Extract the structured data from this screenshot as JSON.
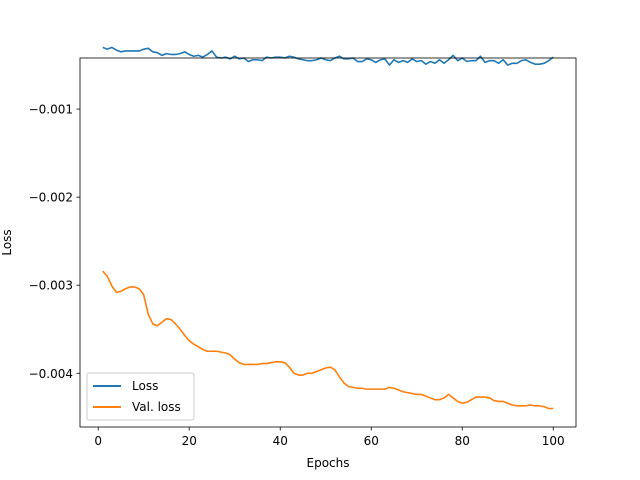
{
  "chart_data": {
    "type": "line",
    "title": "",
    "xlabel": "Epochs",
    "ylabel": "Loss",
    "xlim": [
      -4.0,
      105.0
    ],
    "ylim": [
      -0.00461,
      -0.00042
    ],
    "x_ticks": [
      0,
      20,
      40,
      60,
      80,
      100
    ],
    "x_tick_labels": [
      "0",
      "20",
      "40",
      "60",
      "80",
      "100"
    ],
    "y_ticks": [
      -0.001,
      -0.002,
      -0.003,
      -0.004
    ],
    "y_tick_labels": [
      "−0.001",
      "−0.002",
      "−0.003",
      "−0.004"
    ],
    "grid": false,
    "legend_position": "lower-left",
    "colors": {
      "Loss": "#1f77b4",
      "Val. loss": "#ff7f0e"
    },
    "x": [
      1,
      2,
      3,
      4,
      5,
      6,
      7,
      8,
      9,
      10,
      11,
      12,
      13,
      14,
      15,
      16,
      17,
      18,
      19,
      20,
      21,
      22,
      23,
      24,
      25,
      26,
      27,
      28,
      29,
      30,
      31,
      32,
      33,
      34,
      35,
      36,
      37,
      38,
      39,
      40,
      41,
      42,
      43,
      44,
      45,
      46,
      47,
      48,
      49,
      50,
      51,
      52,
      53,
      54,
      55,
      56,
      57,
      58,
      59,
      60,
      61,
      62,
      63,
      64,
      65,
      66,
      67,
      68,
      69,
      70,
      71,
      72,
      73,
      74,
      75,
      76,
      77,
      78,
      79,
      80,
      81,
      82,
      83,
      84,
      85,
      86,
      87,
      88,
      89,
      90,
      91,
      92,
      93,
      94,
      95,
      96,
      97,
      98,
      99,
      100
    ],
    "series": [
      {
        "name": "Loss",
        "values": [
          -0.0003,
          -0.00032,
          -0.0003,
          -0.00033,
          -0.00035,
          -0.00034,
          -0.00034,
          -0.00034,
          -0.00034,
          -0.00032,
          -0.00031,
          -0.00035,
          -0.00036,
          -0.00039,
          -0.00037,
          -0.00038,
          -0.00038,
          -0.00037,
          -0.00035,
          -0.00038,
          -0.0004,
          -0.00039,
          -0.00041,
          -0.00038,
          -0.00034,
          -0.00041,
          -0.00042,
          -0.00041,
          -0.00043,
          -0.0004,
          -0.00043,
          -0.00042,
          -0.00046,
          -0.00044,
          -0.00044,
          -0.00045,
          -0.00041,
          -0.00042,
          -0.00041,
          -0.00041,
          -0.00042,
          -0.0004,
          -0.00041,
          -0.00043,
          -0.00044,
          -0.00045,
          -0.00045,
          -0.00044,
          -0.00042,
          -0.00044,
          -0.00045,
          -0.00042,
          -0.0004,
          -0.00043,
          -0.00043,
          -0.00042,
          -0.00046,
          -0.00046,
          -0.00043,
          -0.00044,
          -0.00047,
          -0.00044,
          -0.00043,
          -0.0005,
          -0.00044,
          -0.00047,
          -0.00045,
          -0.00047,
          -0.00043,
          -0.00046,
          -0.00045,
          -0.00049,
          -0.00046,
          -0.00048,
          -0.00044,
          -0.00048,
          -0.00044,
          -0.00039,
          -0.00045,
          -0.00042,
          -0.00046,
          -0.00045,
          -0.00045,
          -0.0004,
          -0.00047,
          -0.00045,
          -0.00045,
          -0.00048,
          -0.00044,
          -0.0005,
          -0.00048,
          -0.00048,
          -0.00045,
          -0.00044,
          -0.00047,
          -0.00049,
          -0.00049,
          -0.00048,
          -0.00045,
          -0.00041
        ]
      },
      {
        "name": "Val. loss",
        "values": [
          -0.00284,
          -0.0029,
          -0.00301,
          -0.00308,
          -0.00307,
          -0.00304,
          -0.00302,
          -0.00302,
          -0.00304,
          -0.00311,
          -0.00333,
          -0.00344,
          -0.00346,
          -0.00342,
          -0.00338,
          -0.00339,
          -0.00344,
          -0.0035,
          -0.00357,
          -0.00363,
          -0.00367,
          -0.0037,
          -0.00373,
          -0.00375,
          -0.00375,
          -0.00375,
          -0.00376,
          -0.00377,
          -0.00379,
          -0.00384,
          -0.00388,
          -0.0039,
          -0.0039,
          -0.0039,
          -0.0039,
          -0.00389,
          -0.00389,
          -0.00388,
          -0.00387,
          -0.00387,
          -0.00388,
          -0.00393,
          -0.004,
          -0.00402,
          -0.00402,
          -0.004,
          -0.004,
          -0.00398,
          -0.00396,
          -0.00394,
          -0.00393,
          -0.00396,
          -0.00404,
          -0.00411,
          -0.00415,
          -0.00416,
          -0.00417,
          -0.00417,
          -0.00418,
          -0.00418,
          -0.00418,
          -0.00418,
          -0.00418,
          -0.00416,
          -0.00417,
          -0.00419,
          -0.00421,
          -0.00422,
          -0.00423,
          -0.00424,
          -0.00424,
          -0.00426,
          -0.00428,
          -0.0043,
          -0.0043,
          -0.00428,
          -0.00424,
          -0.00428,
          -0.00432,
          -0.00434,
          -0.00433,
          -0.0043,
          -0.00427,
          -0.00427,
          -0.00427,
          -0.00428,
          -0.00431,
          -0.00432,
          -0.00432,
          -0.00434,
          -0.00436,
          -0.00437,
          -0.00437,
          -0.00437,
          -0.00436,
          -0.00437,
          -0.00437,
          -0.00438,
          -0.0044,
          -0.0044
        ]
      }
    ]
  }
}
